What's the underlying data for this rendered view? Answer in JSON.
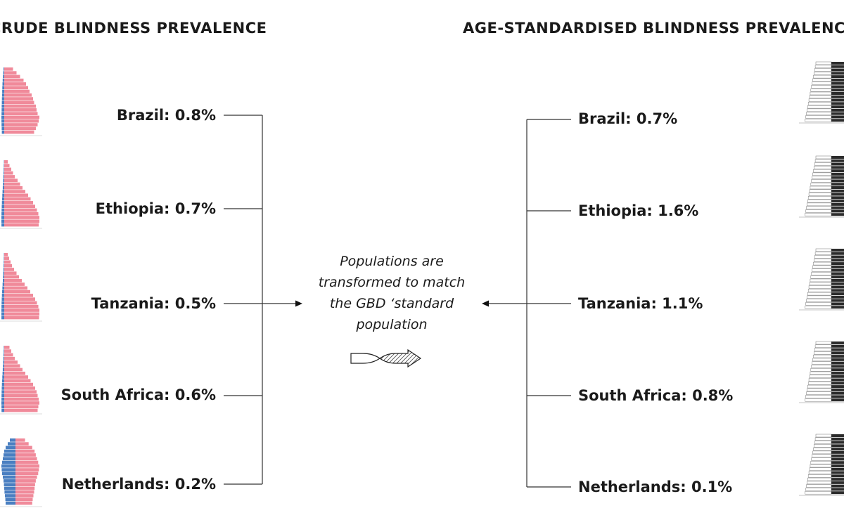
{
  "headings": {
    "crude": "CRUDE BLINDNESS PREVALENCE",
    "standardised": "AGE-STANDARDISED BLINDNESS PREVALENCE"
  },
  "crude": [
    {
      "country": "Brazil",
      "value": "0.8%"
    },
    {
      "country": "Ethiopia",
      "value": "0.7%"
    },
    {
      "country": "Tanzania",
      "value": "0.5%"
    },
    {
      "country": "South Africa",
      "value": "0.6%"
    },
    {
      "country": "Netherlands",
      "value": "0.2%"
    }
  ],
  "standardised": [
    {
      "country": "Brazil",
      "value": "0.7%"
    },
    {
      "country": "Ethiopia",
      "value": "1.6%"
    },
    {
      "country": "Tanzania",
      "value": "1.1%"
    },
    {
      "country": "South Africa",
      "value": "0.8%"
    },
    {
      "country": "Netherlands",
      "value": "0.1%"
    }
  ],
  "center_text": {
    "line1": "Populations are",
    "line2": "transformed to match",
    "line3": "the GBD ‘standard",
    "line4": "population"
  },
  "colors": {
    "female_bar": "#f08a9a",
    "male_bar": "#4a7fc1",
    "standard_bar_dark": "#2b2b2b",
    "standard_bar_light": "#ffffff",
    "line": "#333333"
  },
  "icons": {
    "arrow_left_to_center": "arrow-right-icon",
    "arrow_right_to_center": "arrow-left-icon",
    "transform_arrow": "hatched-arrow-icon"
  }
}
